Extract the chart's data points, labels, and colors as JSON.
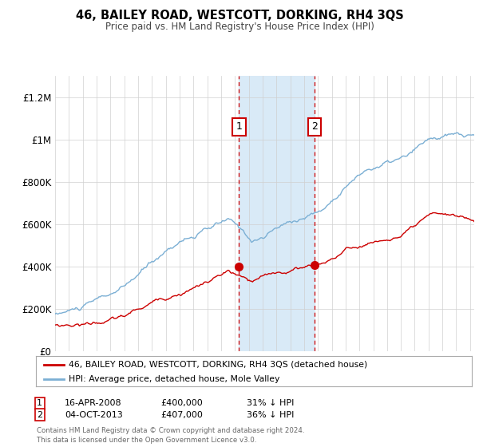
{
  "title": "46, BAILEY ROAD, WESTCOTT, DORKING, RH4 3QS",
  "subtitle": "Price paid vs. HM Land Registry's House Price Index (HPI)",
  "legend_label_red": "46, BAILEY ROAD, WESTCOTT, DORKING, RH4 3QS (detached house)",
  "legend_label_blue": "HPI: Average price, detached house, Mole Valley",
  "transaction1_date": "16-APR-2008",
  "transaction1_price": "£400,000",
  "transaction1_hpi": "31% ↓ HPI",
  "transaction2_date": "04-OCT-2013",
  "transaction2_price": "£407,000",
  "transaction2_hpi": "36% ↓ HPI",
  "footer": "Contains HM Land Registry data © Crown copyright and database right 2024.\nThis data is licensed under the Open Government Licence v3.0.",
  "ylim": [
    0,
    1300000
  ],
  "yticks": [
    0,
    200000,
    400000,
    600000,
    800000,
    1000000,
    1200000
  ],
  "ytick_labels": [
    "£0",
    "£200K",
    "£400K",
    "£600K",
    "£800K",
    "£1M",
    "£1.2M"
  ],
  "color_red": "#cc0000",
  "color_blue": "#7bafd4",
  "color_shading": "#d9eaf7",
  "transaction1_x": 2008.29,
  "transaction2_x": 2013.75,
  "transaction1_y": 400000,
  "transaction2_y": 407000,
  "xmin": 1995,
  "xmax": 2025.3
}
